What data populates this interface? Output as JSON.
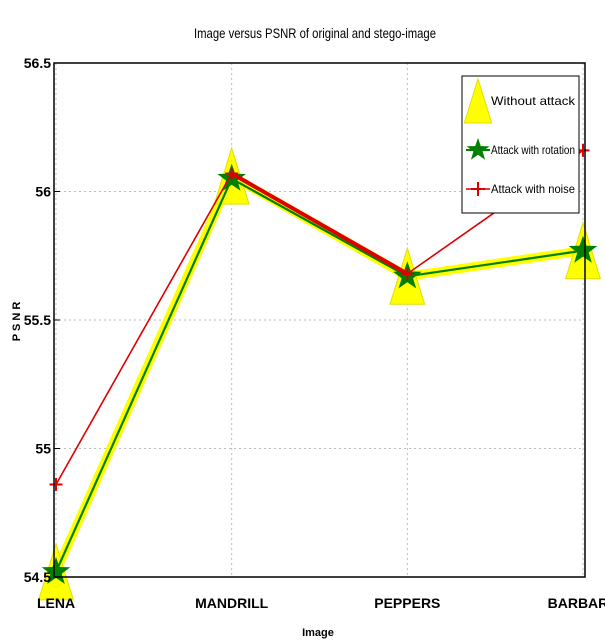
{
  "chart_data": {
    "type": "line",
    "title": "Image versus PSNR of original and stego-image",
    "xlabel": "Image",
    "ylabel": "PSNR",
    "categories": [
      "LENA",
      "MANDRILL",
      "PEPPERS",
      "BARBARA"
    ],
    "ylim": [
      54.5,
      56.5
    ],
    "yticks": [
      54.5,
      55,
      55.5,
      56,
      56.5
    ],
    "ytick_labels": [
      "54.5",
      "55",
      "55.5",
      "56",
      "56.5"
    ],
    "grid": true,
    "legend_position": "top-right",
    "series": [
      {
        "name": "Without attack",
        "values": [
          54.52,
          56.06,
          55.67,
          55.77
        ],
        "color": "#ffff00",
        "marker": "triangle"
      },
      {
        "name": "Attack with rotation",
        "values": [
          54.52,
          56.05,
          55.67,
          55.77
        ],
        "color": "#008000",
        "marker": "star"
      },
      {
        "name": "Attack with noise",
        "values": [
          54.86,
          56.07,
          55.68,
          56.16
        ],
        "color": "#dd0000",
        "marker": "plus"
      }
    ]
  }
}
